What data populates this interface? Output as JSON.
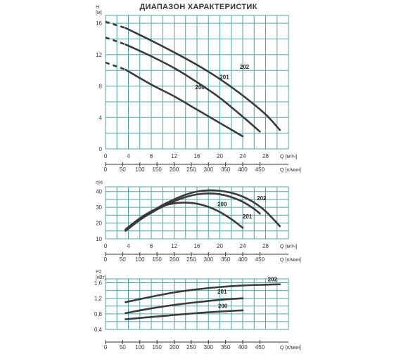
{
  "title": "ДИАПАЗОН ХАРАКТЕРИСТИК",
  "chart_data": [
    {
      "type": "line",
      "ylabel": "H",
      "yunit": "[м]",
      "xlabel": "Q",
      "xunit": "[м³/ч]",
      "xlim": [
        0,
        32
      ],
      "ylim": [
        0,
        17
      ],
      "xticks": [
        0,
        4,
        8,
        12,
        16,
        20,
        24,
        28
      ],
      "yticks": [
        0,
        4,
        8,
        12,
        16
      ],
      "x2label": "Q",
      "x2unit": "[л/мин]",
      "x2ticks": [
        0,
        50,
        100,
        150,
        200,
        250,
        300,
        350,
        400,
        450
      ],
      "series": [
        {
          "name": "200",
          "label_at": [
            16.5,
            7.6
          ],
          "dashed_to": 3.5,
          "x": [
            0,
            3.5,
            8,
            12,
            16,
            20,
            24
          ],
          "y": [
            11.0,
            10.1,
            8.2,
            6.7,
            5.0,
            3.3,
            1.6
          ]
        },
        {
          "name": "201",
          "label_at": [
            20.8,
            8.9
          ],
          "dashed_to": 3.5,
          "x": [
            0,
            3.5,
            8,
            12,
            16,
            20,
            24,
            27
          ],
          "y": [
            14.2,
            13.3,
            11.8,
            10.3,
            8.5,
            6.5,
            4.1,
            2.2
          ]
        },
        {
          "name": "202",
          "label_at": [
            24.3,
            10.2
          ],
          "dashed_to": 3.5,
          "x": [
            0,
            3.5,
            8,
            12,
            16,
            20,
            24,
            28,
            30.5
          ],
          "y": [
            16.2,
            15.4,
            13.8,
            12.3,
            10.7,
            8.9,
            6.8,
            4.4,
            2.4
          ]
        }
      ]
    },
    {
      "type": "line",
      "ylabel": "η%",
      "xlabel": "Q",
      "xunit": "[м³/ч]",
      "xlim": [
        0,
        32
      ],
      "ylim": [
        10,
        43
      ],
      "xticks": [
        0,
        4,
        8,
        12,
        16,
        20,
        24,
        28
      ],
      "yticks": [
        10,
        20,
        30,
        40
      ],
      "x2label": "Q",
      "x2unit": "[л/мин]",
      "x2ticks": [
        0,
        50,
        100,
        150,
        200,
        250,
        300,
        350,
        400,
        450
      ],
      "series": [
        {
          "name": "200",
          "label_at": [
            20.4,
            30.7
          ],
          "x": [
            3.5,
            6,
            8,
            10,
            12,
            14,
            16,
            18,
            20,
            22,
            24
          ],
          "y": [
            16,
            23,
            27.5,
            30.8,
            32.5,
            33,
            32.3,
            30.3,
            27,
            22.5,
            17
          ]
        },
        {
          "name": "201",
          "label_at": [
            24.8,
            23.0
          ],
          "x": [
            3.5,
            6,
            8,
            10,
            12,
            14,
            16,
            18,
            20,
            22,
            24,
            26,
            27
          ],
          "y": [
            15.5,
            22,
            26.5,
            30.5,
            33.8,
            36.5,
            38.2,
            38.8,
            38.3,
            36.5,
            33.5,
            29,
            26
          ]
        },
        {
          "name": "202",
          "label_at": [
            27.3,
            34.5
          ],
          "x": [
            3.5,
            6,
            8,
            10,
            12,
            14,
            16,
            18,
            20,
            22,
            24,
            26,
            28,
            30.5
          ],
          "y": [
            15,
            22,
            27,
            31.5,
            35,
            38,
            40,
            40.8,
            40.5,
            39.2,
            36.8,
            33,
            27.5,
            18
          ]
        }
      ]
    },
    {
      "type": "line",
      "ylabel": "P2",
      "yunit": "[кВт]",
      "xlabel": "Q",
      "xunit": "[л/мин]",
      "xlim": [
        0,
        32
      ],
      "ylim": [
        0.4,
        1.7
      ],
      "xticks_visible": false,
      "yticks": [
        0.4,
        0.8,
        1.2,
        1.6
      ],
      "ytick_labels": [
        "0,4",
        "0,8",
        "1,2",
        "1,6"
      ],
      "x2ticks": [
        0,
        50,
        100,
        150,
        200,
        250,
        300,
        350,
        400,
        450
      ],
      "series": [
        {
          "name": "200",
          "label_at": [
            20.5,
            0.95
          ],
          "x": [
            3.5,
            8,
            12,
            16,
            20,
            24
          ],
          "y": [
            0.66,
            0.72,
            0.77,
            0.82,
            0.86,
            0.89
          ]
        },
        {
          "name": "201",
          "label_at": [
            20.4,
            1.32
          ],
          "x": [
            3.5,
            8,
            12,
            16,
            20,
            24
          ],
          "y": [
            0.82,
            0.94,
            1.03,
            1.1,
            1.16,
            1.2
          ]
        },
        {
          "name": "202",
          "label_at": [
            29.2,
            1.64
          ],
          "x": [
            3.5,
            8,
            12,
            16,
            20,
            24,
            28,
            30.5
          ],
          "y": [
            1.1,
            1.24,
            1.35,
            1.43,
            1.49,
            1.53,
            1.55,
            1.56
          ]
        }
      ]
    }
  ]
}
